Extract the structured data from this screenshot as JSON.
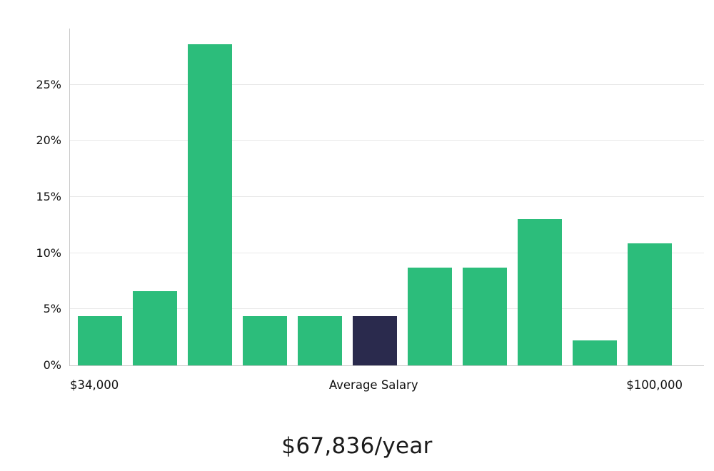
{
  "chart_data": {
    "type": "bar",
    "title": "$67,836/year",
    "xlabel": "",
    "ylabel": "",
    "grid": true,
    "ylim": [
      0,
      30
    ],
    "yticks": [
      0,
      5,
      10,
      15,
      20,
      25
    ],
    "ytick_suffix": "%",
    "values": [
      4.4,
      6.6,
      28.6,
      4.4,
      4.4,
      4.4,
      8.7,
      8.7,
      13.0,
      2.2,
      10.9
    ],
    "highlighted_index": 5,
    "highlighted_meaning": "Average Salary",
    "colors": {
      "bar": "#2cbd7b",
      "highlight": "#2a2a4d",
      "gridline": "#e8e8e8",
      "axis": "#c9c9c9",
      "text": "#111111"
    },
    "x_axis_labels": {
      "min": "$34,000",
      "center": "Average Salary",
      "max": "$100,000"
    }
  }
}
